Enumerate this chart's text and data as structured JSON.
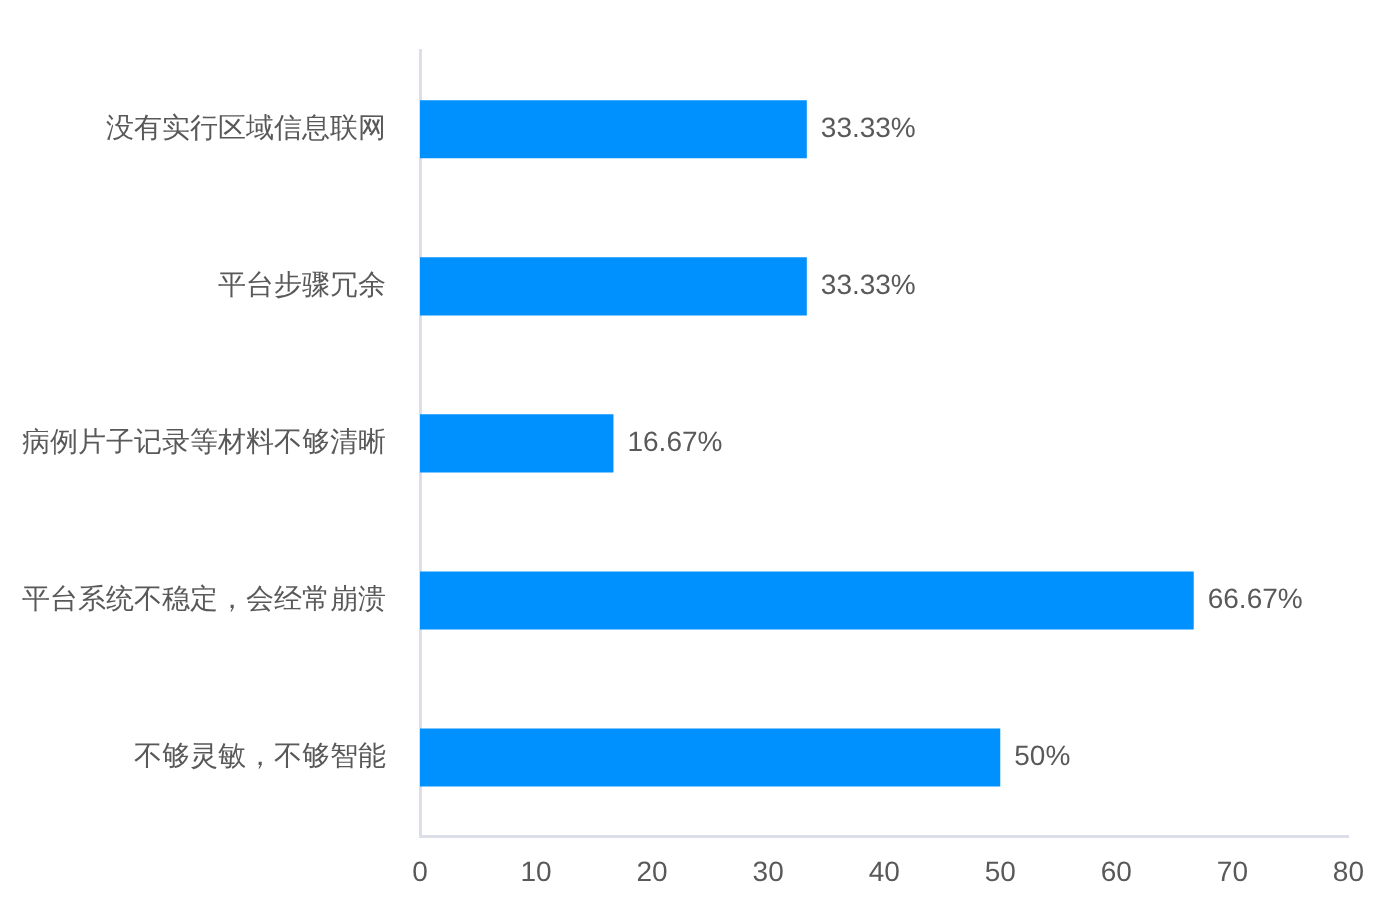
{
  "chart_data": {
    "type": "bar",
    "orientation": "horizontal",
    "categories": [
      "没有实行区域信息联网",
      "平台步骤冗余",
      "病例片子记录等材料不够清晰",
      "平台系统不稳定，会经常崩溃",
      "不够灵敏，不够智能"
    ],
    "values": [
      33.33,
      33.33,
      16.67,
      66.67,
      50
    ],
    "value_labels": [
      "33.33%",
      "33.33%",
      "16.67%",
      "66.67%",
      "50%"
    ],
    "color": "#0091ff",
    "xlim": [
      0,
      80
    ],
    "xticks": [
      0,
      10,
      20,
      30,
      40,
      50,
      60,
      70,
      80
    ]
  }
}
